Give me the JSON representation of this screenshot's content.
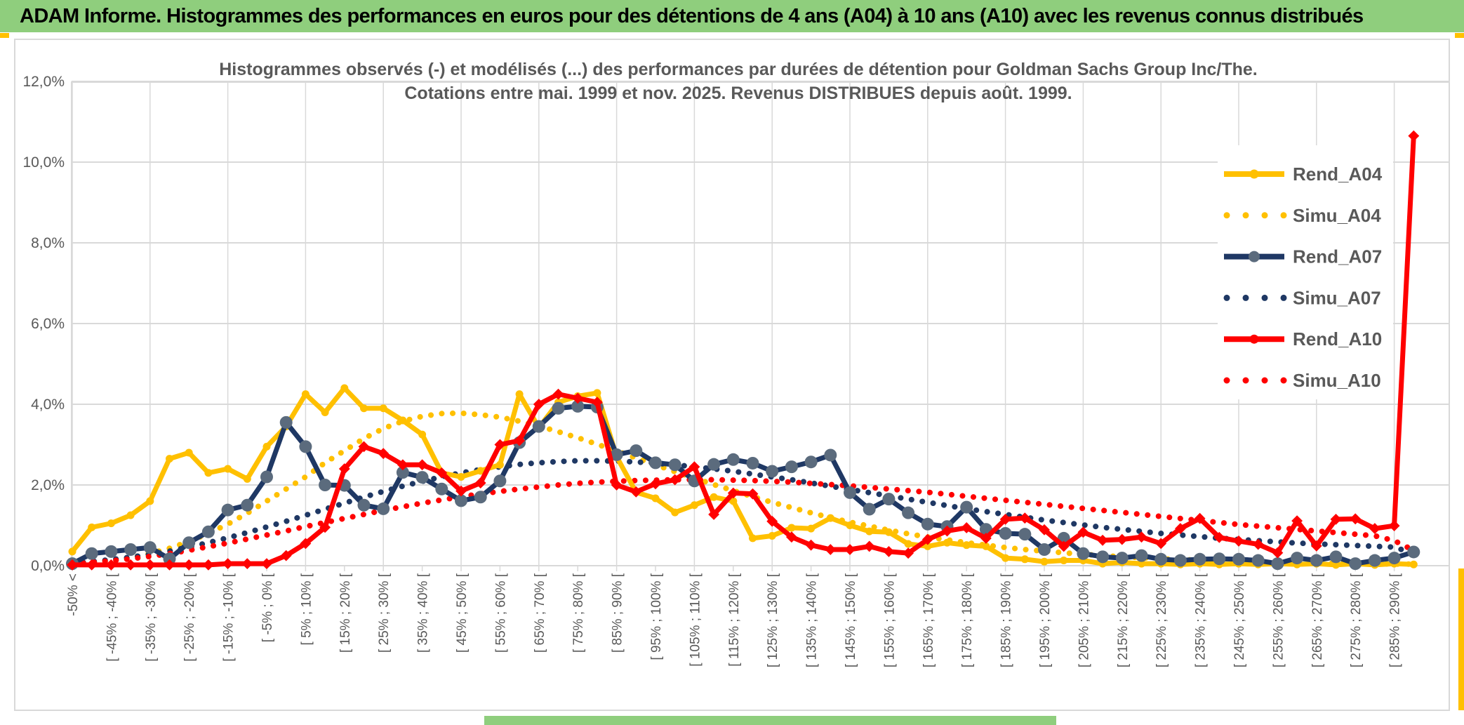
{
  "banner": {
    "title": "ADAM Informe. Histogrammes des performances en euros pour des détentions de 4 ans (A04) à 10 ans (A10) avec les revenus connus distribués"
  },
  "accent_color": "#FFC000",
  "banner_color": "#8FCE7D",
  "chart_data": {
    "type": "line",
    "title_line1": "Histogrammes observés (-) et modélisés (...) des performances par durées de détention pour Goldman Sachs Group Inc/The.",
    "title_line2": "Cotations entre mai. 1999 et nov. 2025. Revenus DISTRIBUES depuis août. 1999.",
    "title_color": "#595959",
    "grid": true,
    "grid_color": "#D9D9D9",
    "legend_position": "right-top",
    "ylim": [
      0,
      12
    ],
    "y_ticks": [
      "0,0%",
      "2,0%",
      "4,0%",
      "6,0%",
      "8,0%",
      "10,0%",
      "12,0%"
    ],
    "categories": [
      "-50% <",
      "",
      "[ -45% ; -40% [",
      "",
      "[ -35% ; -30% [",
      "",
      "[ -25% ; -20% [",
      "",
      "[ -15% ; -10% [",
      "",
      "[ -5% ; 0% [",
      "",
      "[ 5% ; 10% [",
      "",
      "[ 15% ; 20% [",
      "",
      "[ 25% ; 30% [",
      "",
      "[ 35% ; 40% [",
      "",
      "[ 45% ; 50% [",
      "",
      "[ 55% ; 60% [",
      "",
      "[ 65% ; 70% [",
      "",
      "[ 75% ; 80% [",
      "",
      "[ 85% ; 90% [",
      "",
      "[ 95% ; 100% [",
      "",
      "[ 105% ; 110% [",
      "",
      "[ 115% ; 120% [",
      "",
      "[ 125% ; 130% [",
      "",
      "[ 135% ; 140% [",
      "",
      "[ 145% ; 150% [",
      "",
      "[ 155% ; 160% [",
      "",
      "[ 165% ; 170% [",
      "",
      "[ 175% ; 180% [",
      "",
      "[ 185% ; 190% [",
      "",
      "[ 195% ; 200% [",
      "",
      "[ 205% ; 210% [",
      "",
      "[ 215% ; 220% [",
      "",
      "[ 225% ; 230% [",
      "",
      "[ 235% ; 240% [",
      "",
      "[ 245% ; 250% [",
      "",
      "[ 255% ; 260% [",
      "",
      "[ 265% ; 270% [",
      "",
      "[ 275% ; 280% [",
      "",
      "[ 285% ; 290% [",
      ""
    ],
    "series": [
      {
        "name": "Rend_A04",
        "color": "#FFC000",
        "style": "solid",
        "marker": "circle",
        "marker_color": "#FFC000",
        "values": [
          0.35,
          0.95,
          1.05,
          1.25,
          1.6,
          2.65,
          2.8,
          2.3,
          2.4,
          2.15,
          2.95,
          3.45,
          4.25,
          3.8,
          4.4,
          3.9,
          3.9,
          3.6,
          3.25,
          2.3,
          2.2,
          2.35,
          2.5,
          4.25,
          3.42,
          4.05,
          4.2,
          4.28,
          2.7,
          1.82,
          1.67,
          1.32,
          1.5,
          1.7,
          1.6,
          0.68,
          0.74,
          0.94,
          0.92,
          1.18,
          1.0,
          0.85,
          0.83,
          0.54,
          0.48,
          0.57,
          0.51,
          0.48,
          0.19,
          0.16,
          0.1,
          0.13,
          0.13,
          0.05,
          0.08,
          0.05,
          0.05,
          0.03,
          0.05,
          0.03,
          0.05,
          0.03,
          0.05,
          0.03,
          0.05,
          0.02,
          0.05,
          0.02,
          0.05,
          0.03
        ]
      },
      {
        "name": "Simu_A04",
        "color": "#FFC000",
        "style": "dotted",
        "values": [
          0.05,
          0.08,
          0.13,
          0.2,
          0.3,
          0.43,
          0.6,
          0.8,
          1.03,
          1.3,
          1.6,
          1.9,
          2.2,
          2.55,
          2.85,
          3.15,
          3.4,
          3.58,
          3.7,
          3.77,
          3.78,
          3.74,
          3.68,
          3.58,
          3.46,
          3.32,
          3.17,
          3.01,
          2.84,
          2.67,
          2.5,
          2.33,
          2.17,
          2.01,
          1.86,
          1.71,
          1.57,
          1.44,
          1.31,
          1.19,
          1.08,
          0.98,
          0.88,
          0.79,
          0.71,
          0.64,
          0.57,
          0.51,
          0.45,
          0.4,
          0.36,
          0.32,
          0.28,
          0.25,
          0.22,
          0.2,
          0.17,
          0.15,
          0.14,
          0.12,
          0.11,
          0.09,
          0.08,
          0.07,
          0.07,
          0.06,
          0.05,
          0.05,
          0.04,
          0.04
        ]
      },
      {
        "name": "Rend_A07",
        "color": "#1F3864",
        "style": "solid",
        "marker": "circle",
        "marker_color": "#5B6B7D",
        "values": [
          0.05,
          0.3,
          0.35,
          0.4,
          0.45,
          0.17,
          0.57,
          0.84,
          1.38,
          1.5,
          2.2,
          3.55,
          2.95,
          2.0,
          1.99,
          1.5,
          1.41,
          2.31,
          2.19,
          1.9,
          1.61,
          1.7,
          2.1,
          3.05,
          3.45,
          3.9,
          3.95,
          3.93,
          2.75,
          2.85,
          2.55,
          2.5,
          2.1,
          2.51,
          2.63,
          2.54,
          2.34,
          2.45,
          2.57,
          2.74,
          1.81,
          1.4,
          1.65,
          1.31,
          1.03,
          0.97,
          1.45,
          0.9,
          0.8,
          0.78,
          0.4,
          0.68,
          0.3,
          0.22,
          0.19,
          0.25,
          0.16,
          0.13,
          0.16,
          0.17,
          0.16,
          0.13,
          0.05,
          0.19,
          0.13,
          0.22,
          0.05,
          0.13,
          0.19,
          0.34
        ]
      },
      {
        "name": "Simu_A07",
        "color": "#1F3864",
        "style": "dotted",
        "values": [
          0.06,
          0.1,
          0.15,
          0.21,
          0.28,
          0.36,
          0.46,
          0.57,
          0.69,
          0.82,
          0.96,
          1.1,
          1.25,
          1.4,
          1.55,
          1.7,
          1.84,
          1.97,
          2.09,
          2.2,
          2.3,
          2.38,
          2.45,
          2.51,
          2.55,
          2.58,
          2.6,
          2.6,
          2.59,
          2.57,
          2.54,
          2.5,
          2.45,
          2.4,
          2.34,
          2.27,
          2.2,
          2.13,
          2.05,
          1.97,
          1.89,
          1.81,
          1.73,
          1.65,
          1.57,
          1.49,
          1.41,
          1.34,
          1.27,
          1.2,
          1.13,
          1.07,
          1.01,
          0.95,
          0.9,
          0.85,
          0.8,
          0.76,
          0.72,
          0.68,
          0.65,
          0.62,
          0.59,
          0.56,
          0.54,
          0.52,
          0.5,
          0.48,
          0.46,
          0.3
        ]
      },
      {
        "name": "Rend_A10",
        "color": "#FF0000",
        "style": "solid",
        "marker": "diamond",
        "marker_color": "#FF0000",
        "values": [
          0.02,
          0.02,
          0.02,
          0.02,
          0.02,
          0.02,
          0.02,
          0.02,
          0.05,
          0.05,
          0.05,
          0.25,
          0.55,
          0.95,
          2.4,
          2.95,
          2.78,
          2.5,
          2.5,
          2.3,
          1.85,
          2.05,
          3.0,
          3.1,
          4.0,
          4.25,
          4.15,
          4.05,
          2.0,
          1.83,
          2.03,
          2.13,
          2.45,
          1.27,
          1.8,
          1.78,
          1.1,
          0.71,
          0.51,
          0.4,
          0.4,
          0.48,
          0.35,
          0.31,
          0.65,
          0.86,
          0.94,
          0.68,
          1.15,
          1.18,
          0.89,
          0.48,
          0.83,
          0.63,
          0.65,
          0.71,
          0.55,
          0.92,
          1.17,
          0.7,
          0.61,
          0.53,
          0.32,
          1.11,
          0.49,
          1.15,
          1.16,
          0.92,
          0.99,
          10.65
        ]
      },
      {
        "name": "Simu_A10",
        "color": "#FF0000",
        "style": "dotted",
        "values": [
          0.05,
          0.08,
          0.12,
          0.17,
          0.23,
          0.3,
          0.38,
          0.47,
          0.56,
          0.66,
          0.76,
          0.86,
          0.97,
          1.07,
          1.17,
          1.27,
          1.37,
          1.46,
          1.55,
          1.63,
          1.71,
          1.78,
          1.84,
          1.9,
          1.95,
          2.0,
          2.04,
          2.07,
          2.09,
          2.11,
          2.12,
          2.13,
          2.13,
          2.13,
          2.12,
          2.11,
          2.09,
          2.07,
          2.04,
          2.01,
          1.98,
          1.94,
          1.9,
          1.86,
          1.82,
          1.77,
          1.72,
          1.67,
          1.62,
          1.57,
          1.52,
          1.47,
          1.42,
          1.37,
          1.32,
          1.27,
          1.22,
          1.17,
          1.12,
          1.07,
          1.02,
          0.98,
          0.94,
          0.9,
          0.86,
          0.82,
          0.78,
          0.74,
          0.62,
          0.38
        ]
      }
    ]
  }
}
